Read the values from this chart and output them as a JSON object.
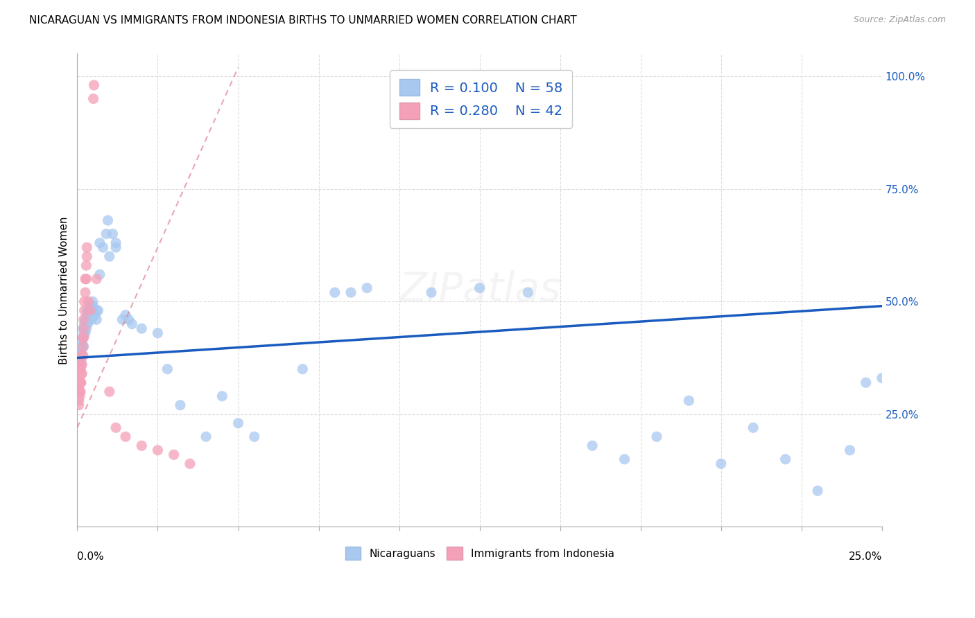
{
  "title": "NICARAGUAN VS IMMIGRANTS FROM INDONESIA BIRTHS TO UNMARRIED WOMEN CORRELATION CHART",
  "source": "Source: ZipAtlas.com",
  "ylabel": "Births to Unmarried Women",
  "blue_label": "Nicaraguans",
  "pink_label": "Immigrants from Indonesia",
  "blue_color": "#a8c8f0",
  "pink_color": "#f4a0b8",
  "blue_line_color": "#1a5bbf",
  "pink_line_color": "#e08090",
  "legend_blue_r": "0.100",
  "legend_blue_n": "58",
  "legend_pink_r": "0.280",
  "legend_pink_n": "42",
  "blue_scatter": [
    [
      0.0005,
      0.37
    ],
    [
      0.0008,
      0.38
    ],
    [
      0.001,
      0.4
    ],
    [
      0.001,
      0.38
    ],
    [
      0.0012,
      0.39
    ],
    [
      0.0012,
      0.37
    ],
    [
      0.0015,
      0.41
    ],
    [
      0.0015,
      0.4
    ],
    [
      0.0018,
      0.42
    ],
    [
      0.0018,
      0.44
    ],
    [
      0.002,
      0.4
    ],
    [
      0.002,
      0.43
    ],
    [
      0.0022,
      0.44
    ],
    [
      0.0022,
      0.45
    ],
    [
      0.0025,
      0.43
    ],
    [
      0.0025,
      0.46
    ],
    [
      0.0028,
      0.45
    ],
    [
      0.0028,
      0.44
    ],
    [
      0.003,
      0.46
    ],
    [
      0.003,
      0.48
    ],
    [
      0.0032,
      0.47
    ],
    [
      0.0032,
      0.45
    ],
    [
      0.0035,
      0.47
    ],
    [
      0.0035,
      0.46
    ],
    [
      0.0038,
      0.48
    ],
    [
      0.004,
      0.47
    ],
    [
      0.004,
      0.49
    ],
    [
      0.0042,
      0.48
    ],
    [
      0.0045,
      0.47
    ],
    [
      0.0045,
      0.46
    ],
    [
      0.0048,
      0.5
    ],
    [
      0.005,
      0.49
    ],
    [
      0.005,
      0.48
    ],
    [
      0.0055,
      0.47
    ],
    [
      0.006,
      0.46
    ],
    [
      0.006,
      0.48
    ],
    [
      0.0065,
      0.48
    ],
    [
      0.007,
      0.56
    ],
    [
      0.007,
      0.63
    ],
    [
      0.008,
      0.62
    ],
    [
      0.009,
      0.65
    ],
    [
      0.0095,
      0.68
    ],
    [
      0.01,
      0.6
    ],
    [
      0.011,
      0.65
    ],
    [
      0.012,
      0.63
    ],
    [
      0.012,
      0.62
    ],
    [
      0.014,
      0.46
    ],
    [
      0.015,
      0.47
    ],
    [
      0.016,
      0.46
    ],
    [
      0.017,
      0.45
    ],
    [
      0.02,
      0.44
    ],
    [
      0.025,
      0.43
    ],
    [
      0.028,
      0.35
    ],
    [
      0.032,
      0.27
    ],
    [
      0.04,
      0.2
    ],
    [
      0.045,
      0.29
    ],
    [
      0.05,
      0.23
    ],
    [
      0.055,
      0.2
    ],
    [
      0.07,
      0.35
    ],
    [
      0.08,
      0.52
    ],
    [
      0.085,
      0.52
    ],
    [
      0.09,
      0.53
    ],
    [
      0.11,
      0.52
    ],
    [
      0.125,
      0.53
    ],
    [
      0.14,
      0.52
    ],
    [
      0.16,
      0.18
    ],
    [
      0.17,
      0.15
    ],
    [
      0.18,
      0.2
    ],
    [
      0.19,
      0.28
    ],
    [
      0.2,
      0.14
    ],
    [
      0.21,
      0.22
    ],
    [
      0.22,
      0.15
    ],
    [
      0.23,
      0.08
    ],
    [
      0.24,
      0.17
    ],
    [
      0.245,
      0.32
    ],
    [
      0.25,
      0.33
    ]
  ],
  "pink_scatter": [
    [
      0.0005,
      0.3
    ],
    [
      0.0005,
      0.28
    ],
    [
      0.0005,
      0.27
    ],
    [
      0.0008,
      0.32
    ],
    [
      0.0008,
      0.3
    ],
    [
      0.0008,
      0.29
    ],
    [
      0.001,
      0.35
    ],
    [
      0.001,
      0.32
    ],
    [
      0.001,
      0.3
    ],
    [
      0.0012,
      0.36
    ],
    [
      0.0012,
      0.34
    ],
    [
      0.0012,
      0.32
    ],
    [
      0.0015,
      0.38
    ],
    [
      0.0015,
      0.36
    ],
    [
      0.0015,
      0.34
    ],
    [
      0.0018,
      0.42
    ],
    [
      0.0018,
      0.4
    ],
    [
      0.0018,
      0.38
    ],
    [
      0.002,
      0.46
    ],
    [
      0.002,
      0.44
    ],
    [
      0.002,
      0.42
    ],
    [
      0.0022,
      0.5
    ],
    [
      0.0022,
      0.48
    ],
    [
      0.0025,
      0.55
    ],
    [
      0.0025,
      0.52
    ],
    [
      0.0028,
      0.58
    ],
    [
      0.0028,
      0.55
    ],
    [
      0.003,
      0.62
    ],
    [
      0.003,
      0.6
    ],
    [
      0.0035,
      0.5
    ],
    [
      0.004,
      0.48
    ],
    [
      0.005,
      0.95
    ],
    [
      0.0052,
      0.98
    ],
    [
      0.006,
      0.55
    ],
    [
      0.01,
      0.3
    ],
    [
      0.012,
      0.22
    ],
    [
      0.015,
      0.2
    ],
    [
      0.02,
      0.18
    ],
    [
      0.025,
      0.17
    ],
    [
      0.03,
      0.16
    ],
    [
      0.035,
      0.14
    ]
  ],
  "xlim": [
    0.0,
    0.25
  ],
  "ylim": [
    0.0,
    1.05
  ],
  "yticks": [
    0.25,
    0.5,
    0.75,
    1.0
  ],
  "ytick_labels": [
    "25.0%",
    "50.0%",
    "75.0%",
    "100.0%"
  ],
  "xtick_positions": [
    0.0,
    0.025,
    0.05,
    0.075,
    0.1,
    0.125,
    0.15,
    0.175,
    0.2,
    0.225,
    0.25
  ],
  "blue_trend_x": [
    0.0,
    0.25
  ],
  "blue_trend_y": [
    0.375,
    0.49
  ],
  "pink_trend_x": [
    0.0,
    0.05
  ],
  "pink_trend_y": [
    0.22,
    1.02
  ]
}
